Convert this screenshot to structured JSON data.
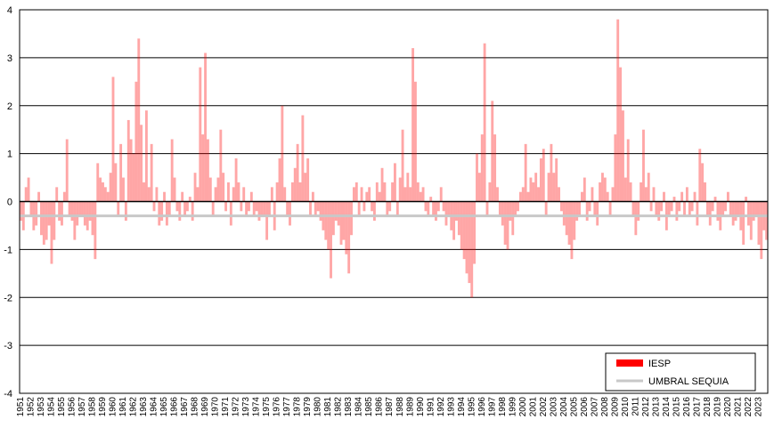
{
  "chart_data": {
    "type": "bar",
    "ylim": [
      -4,
      4
    ],
    "yticks": [
      -4,
      -3,
      -2,
      -1,
      0,
      1,
      2,
      3,
      4
    ],
    "grid": true,
    "legend": "lower right",
    "categories": [
      "1951",
      null,
      null,
      null,
      "1952",
      null,
      null,
      null,
      "1953",
      null,
      null,
      null,
      "1954",
      null,
      null,
      null,
      "1955",
      null,
      null,
      null,
      "1956",
      null,
      null,
      null,
      "1957",
      null,
      null,
      null,
      "1958",
      null,
      null,
      null,
      "1959",
      null,
      null,
      null,
      "1960",
      null,
      null,
      null,
      "1961",
      null,
      null,
      null,
      "1962",
      null,
      null,
      null,
      "1963",
      null,
      null,
      null,
      "1964",
      null,
      null,
      null,
      "1965",
      null,
      null,
      null,
      "1966",
      null,
      null,
      null,
      "1967",
      null,
      null,
      null,
      "1968",
      null,
      null,
      null,
      "1969",
      null,
      null,
      null,
      "1970",
      null,
      null,
      null,
      "1971",
      null,
      null,
      null,
      "1972",
      null,
      null,
      null,
      "1973",
      null,
      null,
      null,
      "1974",
      null,
      null,
      null,
      "1975",
      null,
      null,
      null,
      "1976",
      null,
      null,
      null,
      "1977",
      null,
      null,
      null,
      "1978",
      null,
      null,
      null,
      "1979",
      null,
      null,
      null,
      "1980",
      null,
      null,
      null,
      "1981",
      null,
      null,
      null,
      "1982",
      null,
      null,
      null,
      "1983",
      null,
      null,
      null,
      "1984",
      null,
      null,
      null,
      "1985",
      null,
      null,
      null,
      "1986",
      null,
      null,
      null,
      "1987",
      null,
      null,
      null,
      "1988",
      null,
      null,
      null,
      "1989",
      null,
      null,
      null,
      "1990",
      null,
      null,
      null,
      "1991",
      null,
      null,
      null,
      "1992",
      null,
      null,
      null,
      "1993",
      null,
      null,
      null,
      "1994",
      null,
      null,
      null,
      "1995",
      null,
      null,
      null,
      "1996",
      null,
      null,
      null,
      "1997",
      null,
      null,
      null,
      "1998",
      null,
      null,
      null,
      "1999",
      null,
      null,
      null,
      "2000",
      null,
      null,
      null,
      "2001",
      null,
      null,
      null,
      "2002",
      null,
      null,
      null,
      "2003",
      null,
      null,
      null,
      "2004",
      null,
      null,
      null,
      "2005",
      null,
      null,
      null,
      "2006",
      null,
      null,
      null,
      "2007",
      null,
      null,
      null,
      "2008",
      null,
      null,
      null,
      "2009",
      null,
      null,
      null,
      "2010",
      null,
      null,
      null,
      "2011",
      null,
      null,
      null,
      "2012",
      null,
      null,
      null,
      "2013",
      null,
      null,
      null,
      "2014",
      null,
      null,
      null,
      "2015",
      null,
      null,
      null,
      "2016",
      null,
      null,
      null,
      "2017",
      null,
      null,
      null,
      "2018",
      null,
      null,
      null,
      "2019",
      null,
      null,
      null,
      "2020",
      null,
      null,
      null,
      "2021",
      null,
      null,
      null,
      "2022",
      null,
      null,
      null,
      "2023",
      null,
      null,
      null
    ],
    "series": [
      {
        "name": "IESP",
        "color": "#ff0000",
        "values": [
          -0.4,
          -0.6,
          0.3,
          0.5,
          -0.3,
          -0.6,
          -0.5,
          0.2,
          -0.7,
          -0.9,
          -0.8,
          -0.5,
          -1.3,
          -0.8,
          0.3,
          -0.4,
          -0.5,
          0.2,
          1.3,
          -0.3,
          -0.4,
          -0.8,
          -0.5,
          -0.3,
          -0.3,
          -0.5,
          -0.6,
          -0.4,
          -0.7,
          -1.2,
          0.8,
          0.5,
          0.4,
          0.3,
          0.2,
          0.6,
          2.6,
          0.8,
          -0.3,
          1.2,
          0.5,
          -0.4,
          1.7,
          1.3,
          1.0,
          2.5,
          3.4,
          1.6,
          0.4,
          1.9,
          0.3,
          1.2,
          -0.2,
          0.3,
          -0.5,
          -0.4,
          0.2,
          -0.5,
          -0.3,
          1.3,
          0.5,
          -0.2,
          -0.4,
          0.2,
          -0.3,
          -0.2,
          0.1,
          -0.4,
          0.6,
          0.3,
          2.8,
          1.4,
          3.1,
          1.3,
          0.5,
          -0.3,
          0.3,
          0.5,
          1.5,
          0.6,
          -0.2,
          0.4,
          -0.5,
          0.3,
          0.9,
          0.4,
          -0.2,
          0.3,
          -0.3,
          -0.2,
          0.2,
          -0.3,
          -0.2,
          -0.4,
          -0.3,
          -0.3,
          -0.8,
          -0.3,
          0.3,
          -0.6,
          0.4,
          0.9,
          2.0,
          0.3,
          -0.3,
          -0.5,
          0.4,
          0.7,
          1.2,
          0.4,
          1.8,
          0.6,
          0.9,
          -0.3,
          0.2,
          -0.3,
          -0.2,
          -0.4,
          -0.6,
          -0.8,
          -1.0,
          -1.6,
          -0.7,
          -0.4,
          -0.5,
          -0.9,
          -0.8,
          -1.1,
          -1.5,
          -0.7,
          0.3,
          0.4,
          -0.3,
          0.3,
          -0.2,
          0.2,
          0.3,
          -0.2,
          -0.4,
          0.4,
          0.2,
          0.7,
          0.4,
          -0.3,
          -0.2,
          0.4,
          0.8,
          -0.3,
          0.5,
          1.5,
          0.3,
          0.6,
          0.3,
          3.2,
          2.5,
          0.4,
          0.2,
          0.3,
          -0.2,
          -0.3,
          0.1,
          -0.3,
          -0.4,
          -0.2,
          0.3,
          -0.2,
          -0.5,
          -0.3,
          -0.6,
          -0.8,
          -0.4,
          -0.7,
          -1.0,
          -1.2,
          -1.5,
          -1.7,
          -2.0,
          -1.3,
          1.0,
          0.6,
          1.4,
          3.3,
          -0.3,
          0.4,
          2.1,
          1.4,
          0.3,
          -0.3,
          -0.5,
          -0.9,
          -1.0,
          -0.4,
          -0.7,
          -0.3,
          -0.2,
          0.2,
          0.3,
          1.2,
          0.2,
          0.5,
          0.4,
          0.6,
          0.3,
          0.9,
          1.1,
          -0.3,
          0.6,
          1.2,
          0.6,
          0.9,
          0.3,
          -0.2,
          -0.5,
          -0.7,
          -0.9,
          -1.2,
          -0.8,
          -0.4,
          -0.3,
          0.2,
          0.5,
          -0.4,
          -0.2,
          0.3,
          -0.3,
          -0.5,
          0.4,
          0.6,
          0.5,
          0.2,
          -0.3,
          0.3,
          1.4,
          3.8,
          2.8,
          1.9,
          0.5,
          1.3,
          0.4,
          -0.3,
          -0.7,
          -0.4,
          0.4,
          1.5,
          0.3,
          0.6,
          -0.2,
          0.3,
          -0.3,
          -0.4,
          -0.2,
          0.2,
          -0.6,
          -0.3,
          -0.2,
          0.1,
          -0.4,
          -0.2,
          0.2,
          -0.3,
          0.3,
          -0.3,
          -0.2,
          0.2,
          -0.5,
          1.1,
          0.8,
          0.4,
          -0.3,
          -0.5,
          -0.2,
          0.1,
          -0.4,
          -0.6,
          -0.3,
          -0.2,
          0.2,
          -0.3,
          -0.5,
          -0.4,
          -0.3,
          -0.6,
          -0.9,
          0.1,
          -0.5,
          -0.8,
          -0.4,
          -0.3,
          -0.9,
          -1.2,
          -0.6,
          -0.8
        ]
      }
    ],
    "threshold": {
      "name": "UMBRAL SEQUIA",
      "color": "#c8c8c8",
      "value": -0.3
    }
  }
}
